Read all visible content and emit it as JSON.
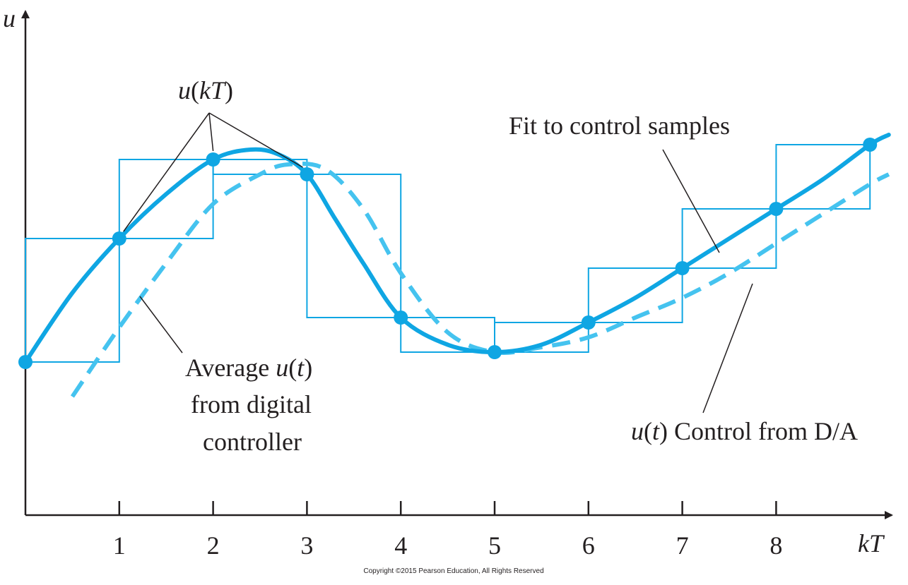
{
  "colors": {
    "axis": "#231f20",
    "fit_curve": "#0fa6e3",
    "average_curve": "#45c3ef",
    "zoh_steps": "#0fa6e3",
    "samples": "#0fa6e3"
  },
  "chart_data": {
    "type": "line",
    "xlabel": "kT",
    "ylabel": "u",
    "xlim": [
      0,
      9.2
    ],
    "ylim": [
      0,
      1
    ],
    "ticks": [
      "1",
      "2",
      "3",
      "4",
      "5",
      "6",
      "7",
      "8"
    ],
    "samples": {
      "k": [
        0,
        1,
        2,
        3,
        4,
        5,
        6,
        7,
        8,
        9
      ],
      "u": [
        0.31,
        0.56,
        0.72,
        0.69,
        0.4,
        0.33,
        0.39,
        0.5,
        0.62,
        0.75
      ]
    },
    "fit_curve": {
      "x": [
        0,
        0.5,
        1,
        1.5,
        2,
        2.4,
        2.7,
        3,
        3.3,
        3.6,
        4,
        4.5,
        5,
        5.5,
        6,
        6.5,
        7,
        7.5,
        8,
        8.5,
        9,
        9.2
      ],
      "u": [
        0.31,
        0.45,
        0.56,
        0.65,
        0.72,
        0.74,
        0.73,
        0.69,
        0.6,
        0.51,
        0.4,
        0.345,
        0.33,
        0.345,
        0.39,
        0.44,
        0.5,
        0.56,
        0.62,
        0.68,
        0.75,
        0.77
      ]
    },
    "average_curve": {
      "x": [
        0.5,
        1,
        1.5,
        2,
        2.5,
        2.8,
        3.2,
        3.6,
        4,
        4.5,
        5,
        5.5,
        6,
        6.5,
        7,
        7.5,
        8,
        8.5,
        9,
        9.2
      ],
      "u": [
        0.24,
        0.38,
        0.51,
        0.63,
        0.69,
        0.71,
        0.7,
        0.62,
        0.49,
        0.37,
        0.33,
        0.34,
        0.36,
        0.4,
        0.44,
        0.49,
        0.55,
        0.61,
        0.67,
        0.69
      ]
    },
    "annotations": {
      "samples_label": "u(kT)",
      "fit_label": "Fit to control samples",
      "average_label": [
        "Average u(t)",
        "from digital",
        "controller"
      ],
      "da_label": "u(t) Control from D/A"
    }
  },
  "copyright": "Copyright ©2015 Pearson Education, All Rights Reserved"
}
